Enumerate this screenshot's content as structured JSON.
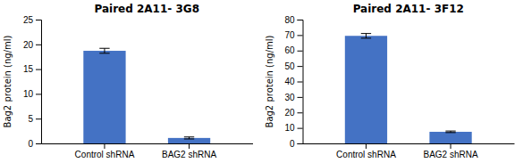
{
  "chart_data": [
    {
      "type": "bar",
      "title": "Paired 2A11- 3G8",
      "categories": [
        "Control shRNA",
        "BAG2 shRNA"
      ],
      "values": [
        18.7,
        1.1
      ],
      "errors": [
        0.5,
        0.2
      ],
      "ylim": [
        0,
        25
      ],
      "yticks": [
        0,
        5,
        10,
        15,
        20,
        25
      ],
      "ylabel": "Bag2 protein (ng/ml)",
      "color": "#4472C4"
    },
    {
      "type": "bar",
      "title": "Paired 2A11- 3F12",
      "categories": [
        "Control shRNA",
        "BAG2 shRNA"
      ],
      "values": [
        69.5,
        7.5
      ],
      "errors": [
        1.5,
        0.5
      ],
      "ylim": [
        0,
        80
      ],
      "yticks": [
        0,
        10,
        20,
        30,
        40,
        50,
        60,
        70,
        80
      ],
      "ylabel": "Bag2 protein (ng/ml)",
      "color": "#4472C4"
    }
  ]
}
